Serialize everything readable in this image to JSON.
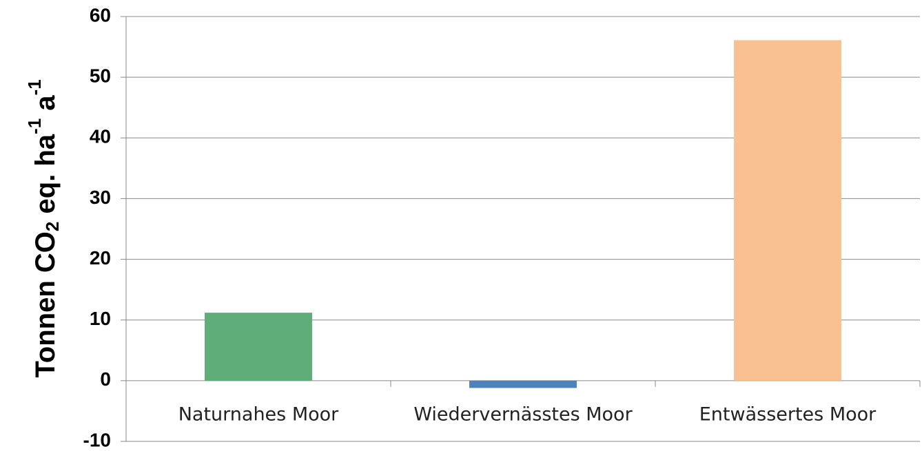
{
  "chart_data": {
    "type": "bar",
    "ylabel": [
      "Tonnen CO",
      "2",
      " eq. ha",
      "-1",
      " a",
      "-1"
    ],
    "categories": [
      "Naturnahes Moor",
      "Wiedervernässtes Moor",
      "Entwässertes Moor"
    ],
    "values": [
      11.2,
      -1.2,
      56.1
    ],
    "colors": [
      "#5fad78",
      "#4f81bd",
      "#f9c091"
    ],
    "ylim": [
      -10,
      60
    ],
    "yticks": [
      -10,
      0,
      10,
      20,
      30,
      40,
      50,
      60
    ],
    "grid": true
  }
}
